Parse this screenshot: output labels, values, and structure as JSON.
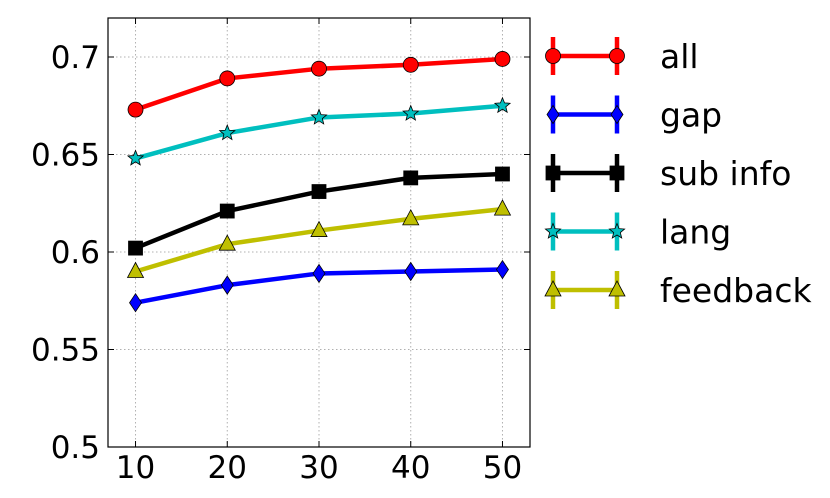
{
  "chart_data": {
    "type": "line",
    "x": [
      10,
      20,
      30,
      40,
      50
    ],
    "xticks": [
      "10",
      "20",
      "30",
      "40",
      "50"
    ],
    "yticks": [
      "0.5",
      "0.55",
      "0.6",
      "0.65",
      "0.7"
    ],
    "xlim": [
      7,
      53
    ],
    "ylim": [
      0.5,
      0.72
    ],
    "grid": true,
    "legend_position": "right",
    "series": [
      {
        "name": "all",
        "color": "#ff0000",
        "marker": "circle",
        "values": [
          0.673,
          0.689,
          0.694,
          0.696,
          0.699
        ]
      },
      {
        "name": "gap",
        "color": "#0000ff",
        "marker": "diamond",
        "values": [
          0.574,
          0.583,
          0.589,
          0.59,
          0.591
        ]
      },
      {
        "name": "sub info",
        "color": "#000000",
        "marker": "square",
        "values": [
          0.602,
          0.621,
          0.631,
          0.638,
          0.64
        ]
      },
      {
        "name": "lang",
        "color": "#00bfbf",
        "marker": "star",
        "values": [
          0.648,
          0.661,
          0.669,
          0.671,
          0.675
        ]
      },
      {
        "name": "feedback",
        "color": "#bfbf00",
        "marker": "triangle",
        "values": [
          0.59,
          0.604,
          0.611,
          0.617,
          0.622
        ]
      }
    ]
  }
}
